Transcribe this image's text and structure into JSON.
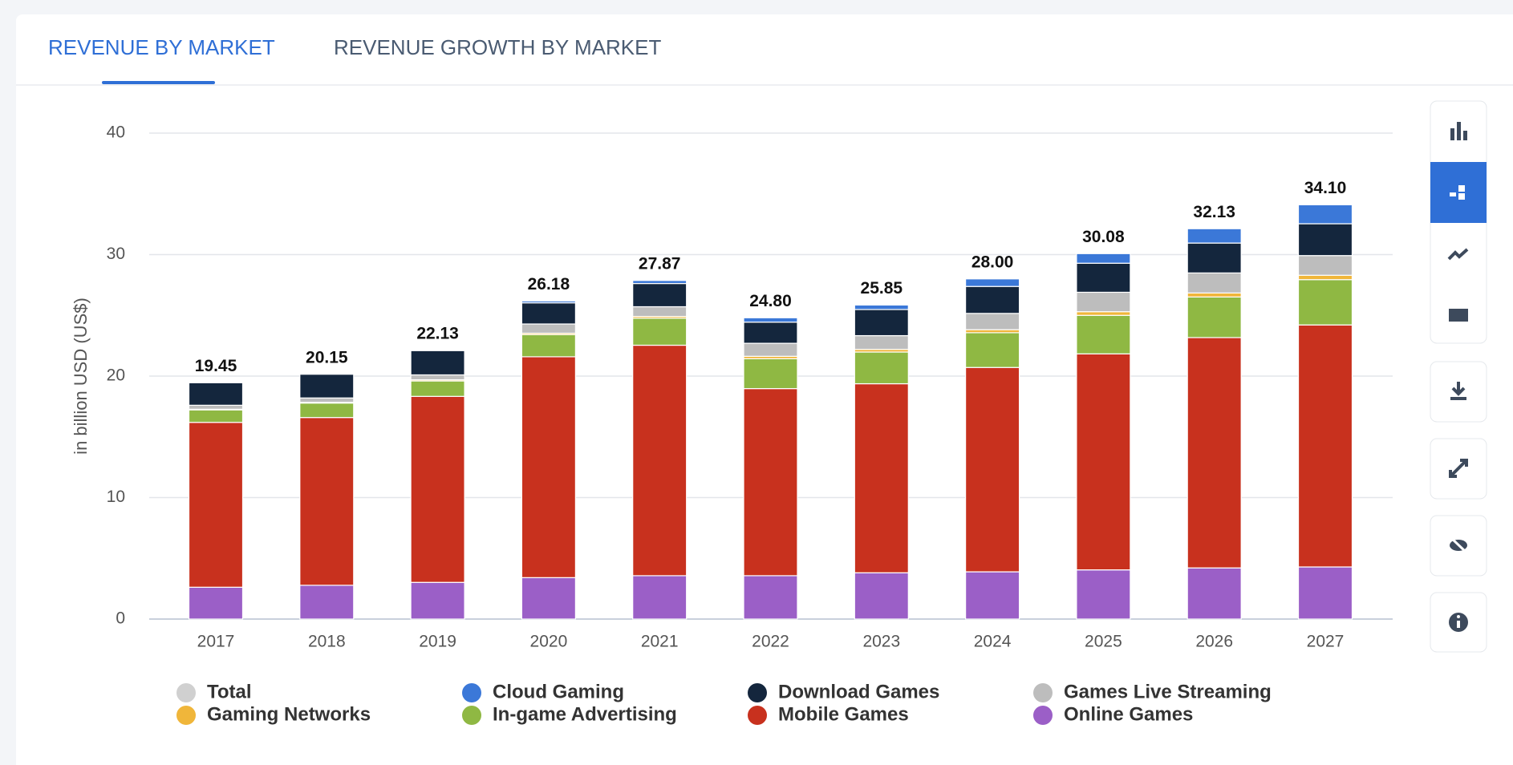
{
  "tabs": [
    "REVENUE BY MARKET",
    "REVENUE GROWTH BY MARKET"
  ],
  "chart_data": {
    "type": "stacked_bar",
    "y_label": "in billion USD (US$)",
    "categories": [
      "2017",
      "2018",
      "2019",
      "2020",
      "2021",
      "2022",
      "2023",
      "2024",
      "2025",
      "2026",
      "2027"
    ],
    "ylim": [
      0,
      40
    ],
    "yticks": [
      0,
      10,
      20,
      30,
      40
    ],
    "grid": true,
    "series": [
      {
        "name": "Total",
        "color": "#cccccc",
        "hidden": true,
        "values": [
          19.45,
          20.15,
          22.13,
          26.18,
          27.87,
          24.8,
          25.85,
          28.0,
          30.08,
          32.13,
          34.1
        ],
        "value_labels": [
          "19.45",
          "20.15",
          "22.13",
          "26.18",
          "27.87",
          "24.80",
          "25.85",
          "28.00",
          "30.08",
          "32.13",
          "34.10"
        ]
      },
      {
        "name": "Cloud Gaming",
        "color": "#3b78d8",
        "values": [
          0,
          0,
          0.03,
          0.15,
          0.25,
          0.36,
          0.37,
          0.62,
          0.79,
          1.18,
          1.56
        ]
      },
      {
        "name": "Download Games",
        "color": "#14263d",
        "values": [
          1.85,
          1.95,
          2.0,
          1.74,
          1.91,
          1.74,
          2.15,
          2.22,
          2.39,
          2.46,
          2.62
        ]
      },
      {
        "name": "Games Live Streaming",
        "color": "#bdbdbd",
        "values": [
          0.33,
          0.36,
          0.4,
          0.76,
          0.8,
          1.07,
          1.13,
          1.34,
          1.6,
          1.65,
          1.62
        ]
      },
      {
        "name": "Gaming Networks",
        "color": "#f0b63a",
        "values": [
          0.05,
          0.06,
          0.1,
          0.12,
          0.15,
          0.2,
          0.22,
          0.25,
          0.3,
          0.33,
          0.36
        ]
      },
      {
        "name": "In-game Advertising",
        "color": "#8fb843",
        "values": [
          1.03,
          1.19,
          1.27,
          1.82,
          2.22,
          2.46,
          2.61,
          2.86,
          3.17,
          3.34,
          3.73
        ]
      },
      {
        "name": "Mobile Games",
        "color": "#c8311e",
        "values": [
          13.57,
          13.81,
          15.31,
          18.18,
          18.97,
          15.4,
          15.56,
          16.82,
          17.78,
          18.96,
          19.92
        ]
      },
      {
        "name": "Online Games",
        "color": "#9b5fc7",
        "values": [
          2.62,
          2.78,
          3.02,
          3.41,
          3.57,
          3.57,
          3.81,
          3.89,
          4.05,
          4.21,
          4.29
        ]
      }
    ]
  }
}
